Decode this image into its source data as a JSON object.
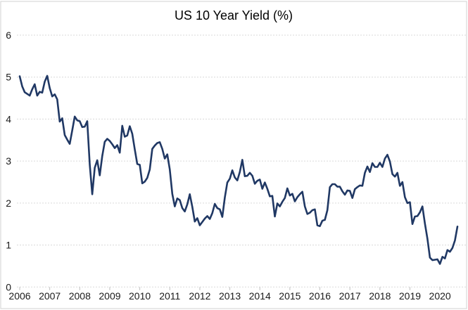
{
  "title": "US 10 Year Yield (%)",
  "colors": {
    "line": "#203864",
    "gridline": "#d9d9d9",
    "tick": "#bfbfbf",
    "border": "#d2d2d2",
    "text": "#000000",
    "background": "#ffffff"
  },
  "chart_data": {
    "type": "line",
    "title": "US 10 Year Yield (%)",
    "xlabel": "",
    "ylabel": "",
    "x_labels": [
      "2006",
      "2007",
      "2008",
      "2009",
      "2010",
      "2011",
      "2012",
      "2013",
      "2014",
      "2015",
      "2016",
      "2017",
      "2018",
      "2019",
      "2020"
    ],
    "y_ticks": [
      0,
      1,
      2,
      3,
      4,
      5,
      6
    ],
    "ylim": [
      0,
      6
    ],
    "grid": "horizontal-dashed",
    "legend": "none",
    "series": [
      {
        "name": "US 10 Year Yield",
        "frequency": "monthly",
        "start": "mid-2006",
        "end": "early-2021",
        "values": [
          5.02,
          4.78,
          4.64,
          4.6,
          4.56,
          4.71,
          4.83,
          4.56,
          4.65,
          4.63,
          4.89,
          5.03,
          4.74,
          4.54,
          4.59,
          4.47,
          3.94,
          4.02,
          3.62,
          3.51,
          3.41,
          3.73,
          4.06,
          3.97,
          3.95,
          3.81,
          3.82,
          3.95,
          2.92,
          2.21,
          2.84,
          3.02,
          2.66,
          3.12,
          3.46,
          3.53,
          3.48,
          3.4,
          3.31,
          3.38,
          3.2,
          3.84,
          3.58,
          3.61,
          3.83,
          3.65,
          3.28,
          2.93,
          2.91,
          2.47,
          2.51,
          2.6,
          2.8,
          3.29,
          3.37,
          3.43,
          3.45,
          3.29,
          3.06,
          3.16,
          2.8,
          2.22,
          1.92,
          2.11,
          2.07,
          1.88,
          1.8,
          1.97,
          2.21,
          1.91,
          1.56,
          1.64,
          1.47,
          1.55,
          1.63,
          1.69,
          1.62,
          1.76,
          1.98,
          1.88,
          1.85,
          1.67,
          2.13,
          2.49,
          2.58,
          2.78,
          2.61,
          2.54,
          2.74,
          3.03,
          2.64,
          2.65,
          2.72,
          2.65,
          2.46,
          2.53,
          2.56,
          2.34,
          2.49,
          2.34,
          2.16,
          2.17,
          1.68,
          1.99,
          1.92,
          2.03,
          2.12,
          2.35,
          2.18,
          2.22,
          2.04,
          2.14,
          2.21,
          2.27,
          1.92,
          1.74,
          1.77,
          1.83,
          1.85,
          1.47,
          1.45,
          1.58,
          1.6,
          1.83,
          2.38,
          2.45,
          2.45,
          2.39,
          2.39,
          2.28,
          2.2,
          2.3,
          2.29,
          2.12,
          2.33,
          2.38,
          2.42,
          2.41,
          2.72,
          2.87,
          2.74,
          2.95,
          2.86,
          2.86,
          2.96,
          2.86,
          3.06,
          3.15,
          2.99,
          2.69,
          2.63,
          2.72,
          2.41,
          2.5,
          2.14,
          2.0,
          2.02,
          1.5,
          1.68,
          1.69,
          1.78,
          1.92,
          1.51,
          1.15,
          0.7,
          0.64,
          0.65,
          0.66,
          0.55,
          0.72,
          0.68,
          0.88,
          0.84,
          0.93,
          1.11,
          1.44
        ]
      }
    ]
  }
}
